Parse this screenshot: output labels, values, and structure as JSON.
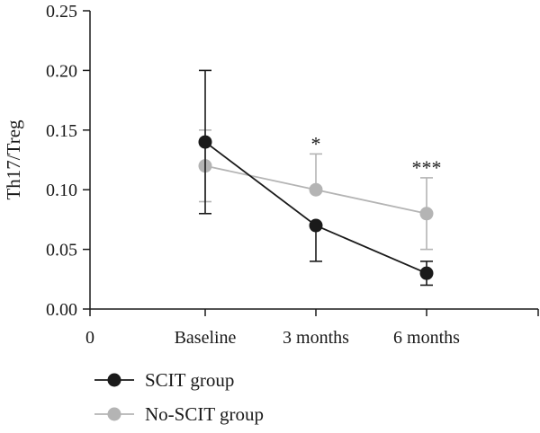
{
  "chart_data": {
    "type": "line",
    "ylabel": "Th17/Treg",
    "ylim": [
      0,
      0.25
    ],
    "yticks": [
      "0.00",
      "0.05",
      "0.10",
      "0.15",
      "0.20",
      "0.25"
    ],
    "x_origin_label": "0",
    "categories": [
      "Baseline",
      "3 months",
      "6 months"
    ],
    "grid": false,
    "legend_position": "bottom-left",
    "series": [
      {
        "name": "SCIT group",
        "color": "#1a1a1a",
        "values": [
          0.14,
          0.07,
          0.03
        ],
        "error_upper": [
          0.2,
          0.07,
          0.04
        ],
        "error_lower": [
          0.08,
          0.04,
          0.02
        ]
      },
      {
        "name": "No-SCIT group",
        "color": "#b4b4b4",
        "values": [
          0.12,
          0.1,
          0.08
        ],
        "error_upper": [
          0.15,
          0.13,
          0.11
        ],
        "error_lower": [
          0.09,
          0.1,
          0.05
        ]
      }
    ],
    "annotations": [
      {
        "category": "3 months",
        "text": "*",
        "anchor_value": 0.13
      },
      {
        "category": "6 months",
        "text": "***",
        "anchor_value": 0.11
      }
    ]
  }
}
